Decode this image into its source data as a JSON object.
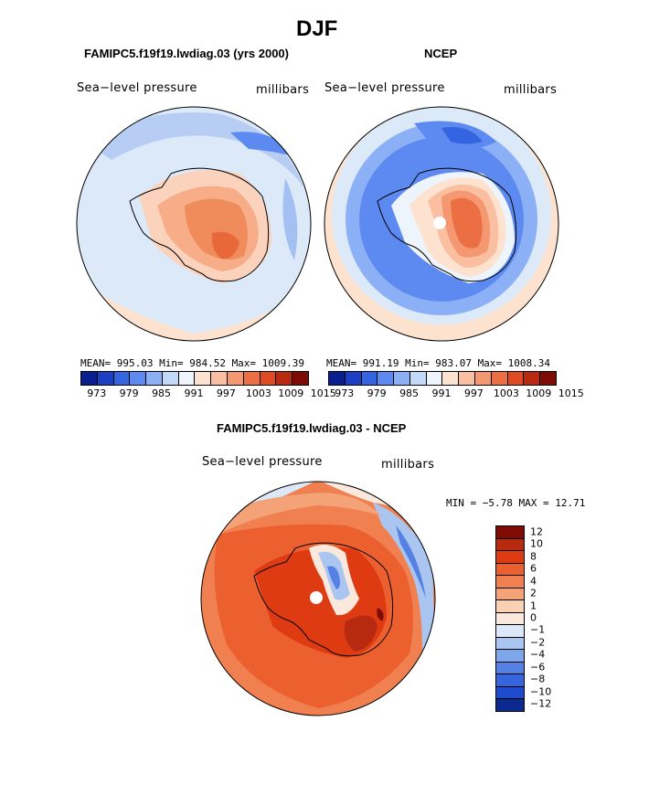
{
  "figure": {
    "title": "DJF",
    "panel_left": {
      "title": "FAMIPC5.f19f19.lwdiag.03 (yrs 2000)",
      "field": "Sea−level pressure",
      "units": "millibars",
      "stats": "MEAN= 995.03   Min= 984.52   Max= 1009.39"
    },
    "panel_right": {
      "title": "NCEP",
      "field": "Sea−level pressure",
      "units": "millibars",
      "stats": "MEAN= 991.19   Min= 983.07   Max= 1008.34"
    },
    "panel_diff": {
      "title": "FAMIPC5.f19f19.lwdiag.03 - NCEP",
      "field": "Sea−level pressure",
      "units": "millibars",
      "stats": "MIN =   −5.78 MAX =   12.71"
    }
  },
  "colorbar_abs": {
    "colors": [
      "#0a1f8f",
      "#1c3fc4",
      "#3564e0",
      "#5c8af0",
      "#8cb0f5",
      "#c2d8f8",
      "#eef4fb",
      "#fde3cf",
      "#f9bfa0",
      "#f39870",
      "#ec6f44",
      "#de4a22",
      "#b72a10",
      "#7e0c05"
    ],
    "labels": [
      "973",
      "979",
      "985",
      "991",
      "997",
      "1003",
      "1009",
      "1015"
    ]
  },
  "colorbar_diff": {
    "colors": [
      "#7e0c05",
      "#b72a10",
      "#de3b12",
      "#ec6030",
      "#f08050",
      "#f4a278",
      "#fad0b4",
      "#fbe8dc",
      "#dce8f7",
      "#aac6f0",
      "#7ea6eb",
      "#5580e4",
      "#3566dd",
      "#1f4bcf",
      "#0a2a8f"
    ],
    "labels": [
      "12",
      "10",
      "8",
      "6",
      "4",
      "2",
      "1",
      "0",
      "−1",
      "−2",
      "−4",
      "−6",
      "−8",
      "−10",
      "−12"
    ]
  },
  "icons": {
    "map_left": "antarctica-slp-model-map",
    "map_right": "antarctica-slp-ncep-map",
    "map_diff": "antarctica-slp-difference-map"
  }
}
